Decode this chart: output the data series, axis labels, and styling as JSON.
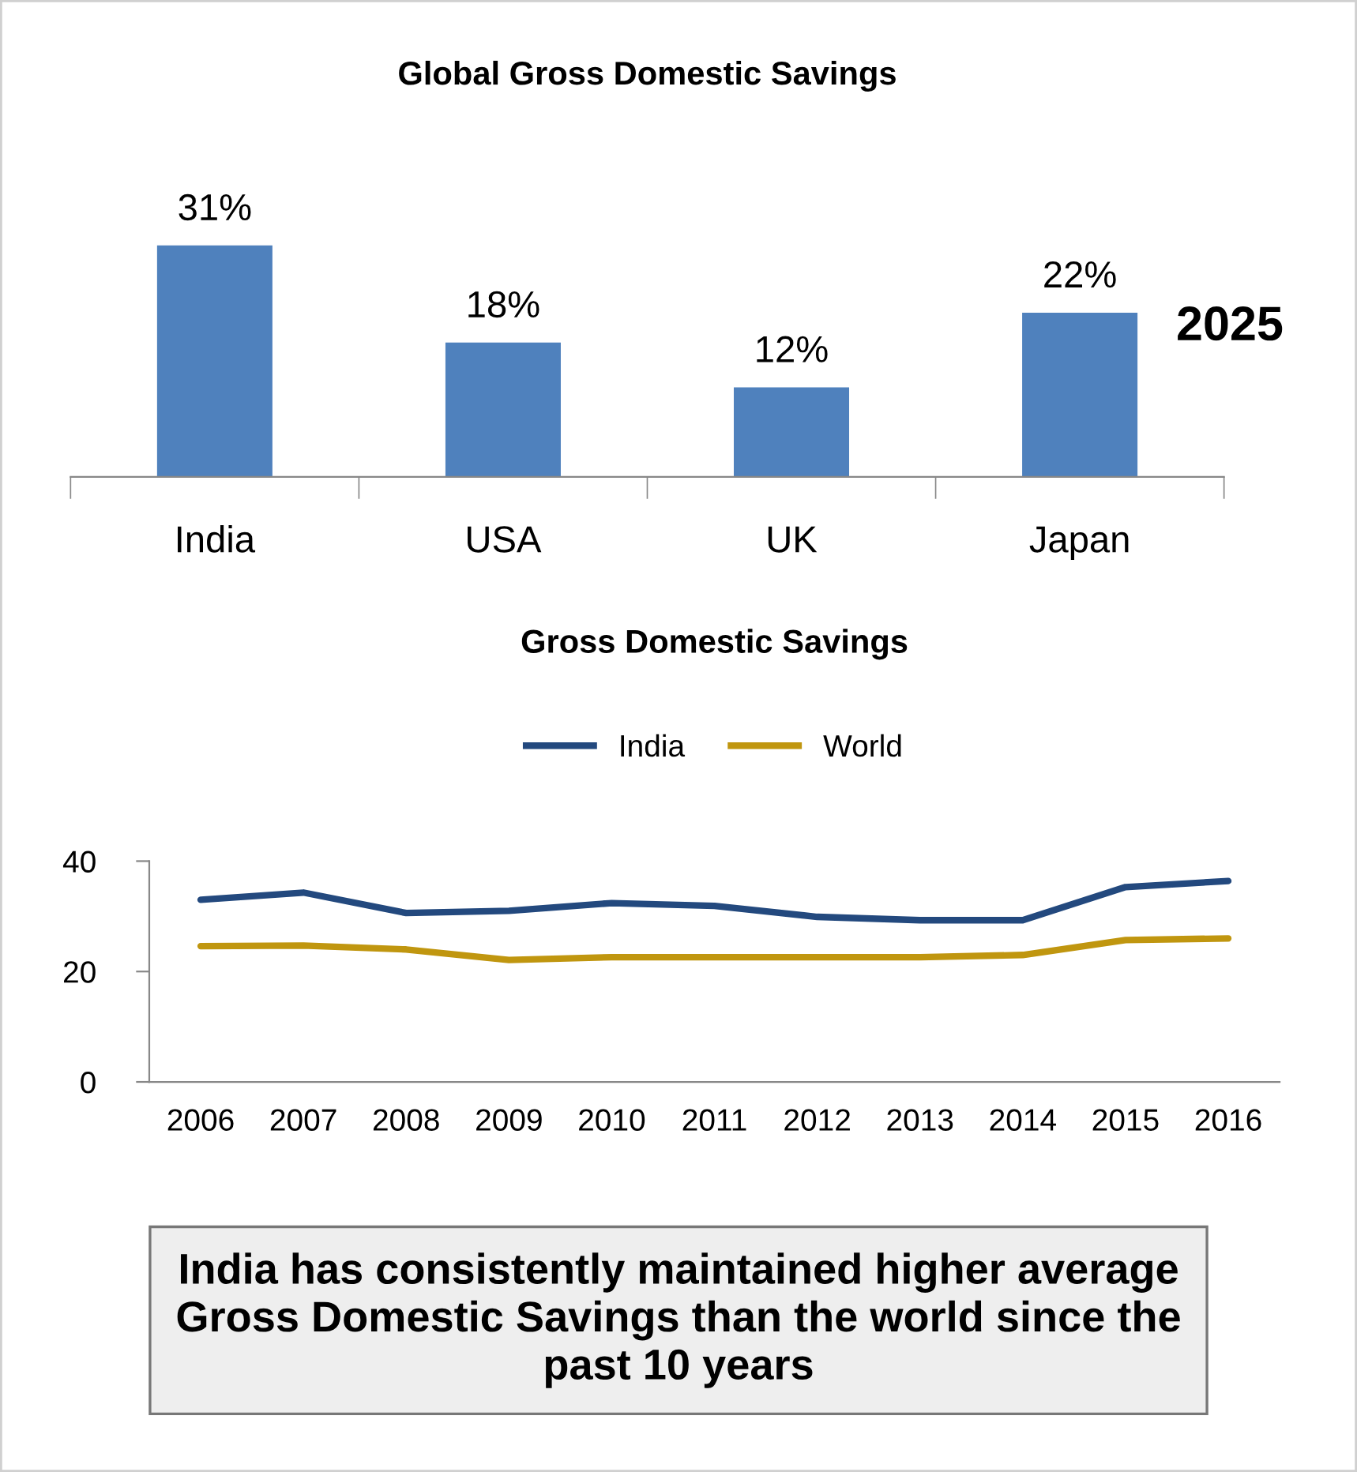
{
  "chart_data": [
    {
      "type": "bar",
      "title": "Global Gross Domestic Savings",
      "categories": [
        "India",
        "USA",
        "UK",
        "Japan"
      ],
      "values": [
        31,
        18,
        12,
        22
      ],
      "value_labels": [
        "31%",
        "18%",
        "12%",
        "22%"
      ],
      "color": "#4f81bd",
      "annotations": [
        "2025"
      ]
    },
    {
      "type": "line",
      "title": "Gross Domestic Savings",
      "categories": [
        "2006",
        "2007",
        "2008",
        "2009",
        "2010",
        "2011",
        "2012",
        "2013",
        "2014",
        "2015",
        "2016"
      ],
      "series": [
        {
          "name": "India",
          "color": "#23497e",
          "values": [
            33,
            34.3,
            30.6,
            31,
            32.4,
            31.9,
            29.9,
            29.3,
            29.3,
            35.3,
            36.4
          ]
        },
        {
          "name": "World",
          "color": "#c0960f",
          "values": [
            24.6,
            24.7,
            24,
            22.1,
            22.6,
            22.6,
            22.6,
            22.6,
            23,
            25.7,
            26
          ]
        }
      ],
      "ylim": [
        0,
        40
      ],
      "yticks": [
        0,
        20,
        40
      ],
      "grid": false,
      "legend": "top",
      "marker": "none",
      "line_style": "solid",
      "annotations": [
        "India has consistently maintained higher average\nGross Domestic Savings than the world since the\npast 10 years"
      ]
    }
  ]
}
